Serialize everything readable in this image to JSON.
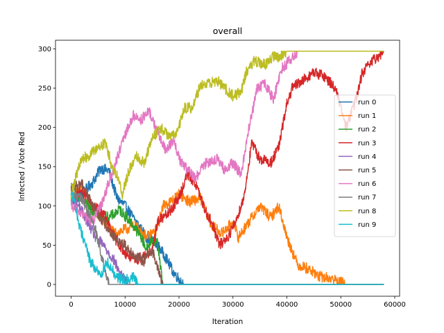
{
  "chart_data": {
    "type": "line",
    "title": "overall",
    "xlabel": "Iteration",
    "ylabel": "Infected / Vote Red",
    "xlim": [
      -2900,
      60900
    ],
    "ylim": [
      -15,
      311
    ],
    "xticks": [
      0,
      10000,
      20000,
      30000,
      40000,
      50000,
      60000
    ],
    "xtick_labels": [
      "0",
      "10000",
      "20000",
      "30000",
      "40000",
      "50000",
      "60000"
    ],
    "yticks": [
      0,
      50,
      100,
      150,
      200,
      250,
      300
    ],
    "ytick_labels": [
      "0",
      "50",
      "100",
      "150",
      "200",
      "250",
      "300"
    ],
    "grid": false,
    "legend_position": "center-right",
    "x_end": 58000,
    "series": [
      {
        "name": "run 0",
        "color": "#1f77b4",
        "points": [
          [
            0,
            105
          ],
          [
            2000,
            115
          ],
          [
            4000,
            130
          ],
          [
            5500,
            148
          ],
          [
            7000,
            145
          ],
          [
            8500,
            110
          ],
          [
            10000,
            100
          ],
          [
            12000,
            80
          ],
          [
            14000,
            60
          ],
          [
            16000,
            50
          ],
          [
            17500,
            35
          ],
          [
            19000,
            15
          ],
          [
            20500,
            3
          ],
          [
            21000,
            0
          ]
        ]
      },
      {
        "name": "run 1",
        "color": "#ff7f0e",
        "points": [
          [
            0,
            110
          ],
          [
            2000,
            125
          ],
          [
            4000,
            95
          ],
          [
            6000,
            80
          ],
          [
            8000,
            65
          ],
          [
            10000,
            70
          ],
          [
            12000,
            75
          ],
          [
            14000,
            60
          ],
          [
            16000,
            70
          ],
          [
            17000,
            100
          ],
          [
            19000,
            108
          ],
          [
            20000,
            115
          ],
          [
            22000,
            105
          ],
          [
            24000,
            110
          ],
          [
            26000,
            75
          ],
          [
            28000,
            65
          ],
          [
            30000,
            80
          ],
          [
            31000,
            60
          ],
          [
            33000,
            80
          ],
          [
            35000,
            100
          ],
          [
            37000,
            85
          ],
          [
            38500,
            100
          ],
          [
            40000,
            60
          ],
          [
            42000,
            25
          ],
          [
            44000,
            20
          ],
          [
            46000,
            10
          ],
          [
            48000,
            8
          ],
          [
            50000,
            3
          ],
          [
            51000,
            0
          ]
        ]
      },
      {
        "name": "run 2",
        "color": "#2ca02c",
        "points": [
          [
            0,
            125
          ],
          [
            1500,
            110
          ],
          [
            3000,
            100
          ],
          [
            5000,
            90
          ],
          [
            7000,
            85
          ],
          [
            9000,
            95
          ],
          [
            11000,
            80
          ],
          [
            13000,
            60
          ],
          [
            14000,
            45
          ],
          [
            15000,
            58
          ],
          [
            16000,
            55
          ],
          [
            17000,
            0
          ]
        ]
      },
      {
        "name": "run 3",
        "color": "#d62728",
        "points": [
          [
            0,
            110
          ],
          [
            2000,
            120
          ],
          [
            4000,
            100
          ],
          [
            6000,
            90
          ],
          [
            8000,
            60
          ],
          [
            10000,
            40
          ],
          [
            12000,
            30
          ],
          [
            14000,
            40
          ],
          [
            15000,
            40
          ],
          [
            16000,
            80
          ],
          [
            18000,
            90
          ],
          [
            20000,
            110
          ],
          [
            21500,
            140
          ],
          [
            23000,
            130
          ],
          [
            24500,
            100
          ],
          [
            26000,
            80
          ],
          [
            27500,
            50
          ],
          [
            29000,
            60
          ],
          [
            30500,
            80
          ],
          [
            32000,
            110
          ],
          [
            33500,
            180
          ],
          [
            35000,
            160
          ],
          [
            37000,
            155
          ],
          [
            38500,
            175
          ],
          [
            40000,
            230
          ],
          [
            41000,
            250
          ],
          [
            43000,
            260
          ],
          [
            45000,
            270
          ],
          [
            47000,
            265
          ],
          [
            49000,
            250
          ],
          [
            51000,
            200
          ],
          [
            53000,
            240
          ],
          [
            54000,
            270
          ],
          [
            56000,
            285
          ],
          [
            58000,
            297
          ]
        ]
      },
      {
        "name": "run 4",
        "color": "#9467bd",
        "points": [
          [
            0,
            110
          ],
          [
            1500,
            100
          ],
          [
            3000,
            80
          ],
          [
            4500,
            60
          ],
          [
            6000,
            50
          ],
          [
            7000,
            40
          ],
          [
            8000,
            30
          ],
          [
            9000,
            15
          ],
          [
            10000,
            5
          ],
          [
            10500,
            0
          ]
        ]
      },
      {
        "name": "run 5",
        "color": "#8c564b",
        "points": [
          [
            0,
            120
          ],
          [
            2000,
            130
          ],
          [
            4000,
            100
          ],
          [
            6000,
            80
          ],
          [
            8000,
            60
          ],
          [
            10000,
            50
          ],
          [
            12000,
            35
          ],
          [
            13500,
            30
          ],
          [
            15000,
            45
          ],
          [
            16500,
            10
          ],
          [
            17000,
            0
          ]
        ]
      },
      {
        "name": "run 6",
        "color": "#e377c2",
        "points": [
          [
            0,
            100
          ],
          [
            2000,
            90
          ],
          [
            4000,
            80
          ],
          [
            5500,
            100
          ],
          [
            7000,
            130
          ],
          [
            8500,
            160
          ],
          [
            10000,
            190
          ],
          [
            11500,
            215
          ],
          [
            13000,
            210
          ],
          [
            14500,
            220
          ],
          [
            16000,
            195
          ],
          [
            17500,
            170
          ],
          [
            19000,
            185
          ],
          [
            20000,
            160
          ],
          [
            21000,
            150
          ],
          [
            23000,
            135
          ],
          [
            25000,
            155
          ],
          [
            27000,
            160
          ],
          [
            28500,
            145
          ],
          [
            30000,
            155
          ],
          [
            31500,
            140
          ],
          [
            33000,
            200
          ],
          [
            34500,
            250
          ],
          [
            36000,
            255
          ],
          [
            37500,
            235
          ],
          [
            39000,
            275
          ],
          [
            40500,
            285
          ],
          [
            42000,
            297
          ],
          [
            58000,
            297
          ]
        ]
      },
      {
        "name": "run 7",
        "color": "#7f7f7f",
        "points": [
          [
            0,
            110
          ],
          [
            1500,
            115
          ],
          [
            3000,
            95
          ],
          [
            4500,
            70
          ],
          [
            5500,
            40
          ],
          [
            6500,
            10
          ],
          [
            7000,
            0
          ]
        ]
      },
      {
        "name": "run 8",
        "color": "#bcbd22",
        "points": [
          [
            0,
            115
          ],
          [
            1000,
            140
          ],
          [
            2000,
            160
          ],
          [
            3500,
            165
          ],
          [
            5000,
            175
          ],
          [
            6500,
            180
          ],
          [
            7500,
            150
          ],
          [
            8500,
            140
          ],
          [
            9500,
            115
          ],
          [
            10500,
            140
          ],
          [
            12000,
            165
          ],
          [
            13500,
            155
          ],
          [
            15000,
            185
          ],
          [
            16500,
            200
          ],
          [
            18000,
            190
          ],
          [
            19500,
            190
          ],
          [
            21000,
            225
          ],
          [
            22500,
            225
          ],
          [
            24000,
            255
          ],
          [
            25500,
            255
          ],
          [
            27000,
            260
          ],
          [
            28500,
            250
          ],
          [
            30000,
            240
          ],
          [
            31500,
            245
          ],
          [
            32500,
            270
          ],
          [
            34000,
            285
          ],
          [
            36000,
            280
          ],
          [
            37500,
            290
          ],
          [
            38500,
            290
          ],
          [
            40000,
            297
          ],
          [
            58000,
            297
          ]
        ]
      },
      {
        "name": "run 9",
        "color": "#17becf",
        "points": [
          [
            0,
            120
          ],
          [
            800,
            100
          ],
          [
            1500,
            75
          ],
          [
            2500,
            55
          ],
          [
            3500,
            30
          ],
          [
            4500,
            20
          ],
          [
            5500,
            10
          ],
          [
            6500,
            30
          ],
          [
            7500,
            20
          ],
          [
            8500,
            10
          ],
          [
            10000,
            5
          ],
          [
            11500,
            10
          ],
          [
            12500,
            0
          ]
        ]
      }
    ]
  }
}
